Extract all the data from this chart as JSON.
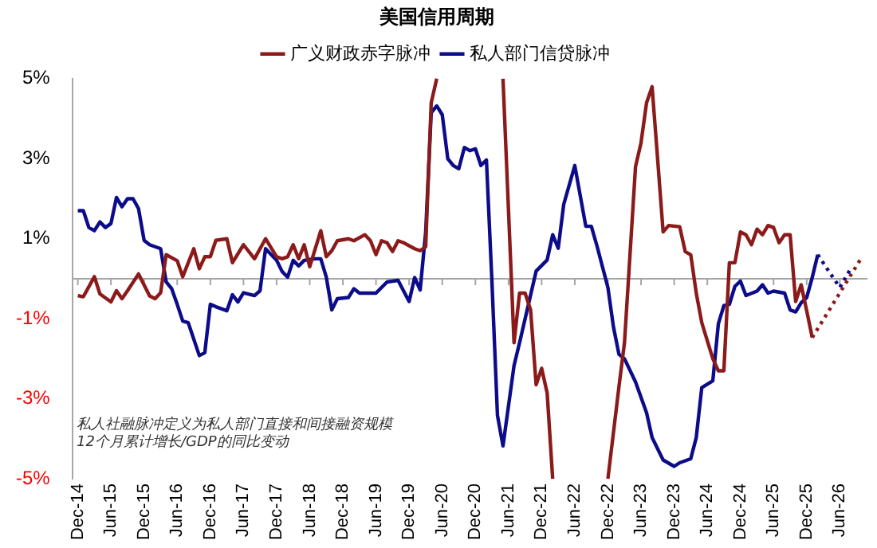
{
  "chart_data": {
    "type": "line",
    "title": "美国信用周期",
    "legend": "top",
    "marker": "none",
    "ylim": [
      -5,
      5
    ],
    "yticks": [
      {
        "value": 5,
        "label": "5%"
      },
      {
        "value": 3,
        "label": "3%"
      },
      {
        "value": 1,
        "label": "1%"
      },
      {
        "value": -1,
        "label": "-1%"
      },
      {
        "value": -3,
        "label": "-3%"
      },
      {
        "value": -5,
        "label": "-5%"
      }
    ],
    "xlim": [
      "2014-11",
      "2026-11"
    ],
    "xticks": [
      {
        "value": "2014-12",
        "label": "Dec-14"
      },
      {
        "value": "2015-06",
        "label": "Jun-15"
      },
      {
        "value": "2015-12",
        "label": "Dec-15"
      },
      {
        "value": "2016-06",
        "label": "Jun-16"
      },
      {
        "value": "2016-12",
        "label": "Dec-16"
      },
      {
        "value": "2017-06",
        "label": "Jun-17"
      },
      {
        "value": "2017-12",
        "label": "Dec-17"
      },
      {
        "value": "2018-06",
        "label": "Jun-18"
      },
      {
        "value": "2018-12",
        "label": "Dec-18"
      },
      {
        "value": "2019-06",
        "label": "Jun-19"
      },
      {
        "value": "2019-12",
        "label": "Dec-19"
      },
      {
        "value": "2020-06",
        "label": "Jun-20"
      },
      {
        "value": "2020-12",
        "label": "Dec-20"
      },
      {
        "value": "2021-06",
        "label": "Jun-21"
      },
      {
        "value": "2021-12",
        "label": "Dec-21"
      },
      {
        "value": "2022-06",
        "label": "Jun-22"
      },
      {
        "value": "2022-12",
        "label": "Dec-22"
      },
      {
        "value": "2023-06",
        "label": "Jun-23"
      },
      {
        "value": "2023-12",
        "label": "Dec-23"
      },
      {
        "value": "2024-06",
        "label": "Jun-24"
      },
      {
        "value": "2024-12",
        "label": "Dec-24"
      },
      {
        "value": "2025-06",
        "label": "Jun-25"
      },
      {
        "value": "2025-12",
        "label": "Dec-25"
      },
      {
        "value": "2026-06",
        "label": "Jun-26"
      }
    ],
    "grid": false,
    "ref_lines": [
      {
        "axis": "y",
        "value": 0,
        "color": "#a6a6a6"
      }
    ],
    "annotations": [
      "私人社融脉冲定义为私人部门直接和间接融资规模\n12个月累计增长/GDP的同比变动"
    ],
    "series": [
      {
        "name": "广义财政赤字脉冲",
        "color": "#8b1a1a",
        "line_style": "solid",
        "x": [
          "2014-12",
          "2015-01",
          "2015-03",
          "2015-04",
          "2015-06",
          "2015-07",
          "2015-08",
          "2015-09",
          "2015-11",
          "2016-01",
          "2016-02",
          "2016-03",
          "2016-04",
          "2016-06",
          "2016-07",
          "2016-09",
          "2016-10",
          "2016-11",
          "2016-12",
          "2017-01",
          "2017-03",
          "2017-04",
          "2017-06",
          "2017-08",
          "2017-10",
          "2017-12",
          "2018-01",
          "2018-02",
          "2018-03",
          "2018-04",
          "2018-05",
          "2018-06",
          "2018-08",
          "2018-09",
          "2018-10",
          "2018-11",
          "2019-01",
          "2019-02",
          "2019-04",
          "2019-05",
          "2019-06",
          "2019-07",
          "2019-08",
          "2019-09",
          "2019-10",
          "2019-11",
          "2020-01",
          "2020-02",
          "2020-03",
          "2020-04",
          "2020-05",
          "2020-11",
          "2021-05",
          "2021-07",
          "2021-08",
          "2021-09",
          "2021-10",
          "2021-11",
          "2021-12",
          "2022-01",
          "2022-02",
          "2022-07",
          "2022-12",
          "2023-02",
          "2023-03",
          "2023-05",
          "2023-06",
          "2023-07",
          "2023-08",
          "2023-09",
          "2023-10",
          "2023-11",
          "2024-01",
          "2024-02",
          "2024-03",
          "2024-04",
          "2024-05",
          "2024-07",
          "2024-08",
          "2024-09",
          "2024-10",
          "2024-11",
          "2024-12",
          "2025-01",
          "2025-02",
          "2025-03",
          "2025-04",
          "2025-05",
          "2025-06",
          "2025-07",
          "2025-08",
          "2025-09",
          "2025-10",
          "2025-11",
          "2025-12",
          "2026-01"
        ],
        "values": [
          -0.42,
          -0.45,
          0.05,
          -0.38,
          -0.58,
          -0.3,
          -0.5,
          -0.3,
          0.12,
          -0.43,
          -0.5,
          -0.35,
          0.6,
          0.45,
          0.05,
          0.75,
          0.25,
          0.55,
          0.55,
          0.96,
          1.0,
          0.4,
          0.85,
          0.5,
          1.0,
          0.55,
          0.5,
          0.55,
          0.85,
          0.5,
          0.85,
          0.3,
          1.2,
          0.55,
          0.7,
          0.95,
          1.0,
          0.95,
          1.1,
          0.95,
          0.6,
          0.95,
          0.9,
          0.68,
          0.95,
          0.9,
          0.75,
          0.7,
          0.8,
          4.4,
          5.0,
          null,
          5.0,
          -1.6,
          -0.36,
          -0.36,
          -0.78,
          -2.65,
          -2.24,
          -2.86,
          -5.0,
          null,
          -5.0,
          -2.7,
          -1.6,
          2.8,
          3.4,
          4.4,
          4.8,
          3.0,
          1.17,
          1.33,
          1.3,
          0.68,
          0.6,
          -0.36,
          -1.1,
          -2.0,
          -2.3,
          -2.3,
          0.4,
          0.4,
          1.17,
          1.1,
          0.85,
          1.24,
          1.1,
          1.33,
          1.28,
          0.9,
          1.1,
          1.1,
          -0.57,
          -0.15,
          -0.8,
          -1.47
        ]
      },
      {
        "name": "私人部门信贷脉冲",
        "color": "#0c0c8a",
        "line_style": "solid",
        "x": [
          "2014-12",
          "2015-01",
          "2015-02",
          "2015-03",
          "2015-04",
          "2015-05",
          "2015-06",
          "2015-07",
          "2015-08",
          "2015-09",
          "2015-10",
          "2015-11",
          "2015-12",
          "2016-01",
          "2016-02",
          "2016-03",
          "2016-04",
          "2016-05",
          "2016-06",
          "2016-07",
          "2016-08",
          "2016-10",
          "2016-11",
          "2016-12",
          "2017-01",
          "2017-03",
          "2017-04",
          "2017-05",
          "2017-06",
          "2017-08",
          "2017-09",
          "2017-10",
          "2017-12",
          "2018-01",
          "2018-02",
          "2018-03",
          "2018-04",
          "2018-05",
          "2018-07",
          "2018-08",
          "2018-09",
          "2018-10",
          "2018-11",
          "2019-01",
          "2019-02",
          "2019-03",
          "2019-05",
          "2019-06",
          "2019-08",
          "2019-10",
          "2019-12",
          "2020-01",
          "2020-02",
          "2020-03",
          "2020-04",
          "2020-05",
          "2020-06",
          "2020-07",
          "2020-08",
          "2020-09",
          "2020-10",
          "2020-11",
          "2020-12",
          "2021-01",
          "2021-02",
          "2021-03",
          "2021-04",
          "2021-05",
          "2021-07",
          "2021-08",
          "2021-11",
          "2022-01",
          "2022-02",
          "2022-03",
          "2022-04",
          "2022-06",
          "2022-08",
          "2022-09",
          "2022-10",
          "2022-12",
          "2023-01",
          "2023-02",
          "2023-03",
          "2023-05",
          "2023-07",
          "2023-08",
          "2023-10",
          "2023-12",
          "2024-01",
          "2024-03",
          "2024-04",
          "2024-05",
          "2024-07",
          "2024-08",
          "2024-09",
          "2024-10",
          "2024-11",
          "2024-12",
          "2025-01",
          "2025-03",
          "2025-04",
          "2025-05",
          "2025-06",
          "2025-08",
          "2025-09",
          "2025-10",
          "2025-11",
          "2025-12",
          "2026-01",
          "2026-02"
        ],
        "values": [
          1.7,
          1.7,
          1.28,
          1.2,
          1.42,
          1.28,
          1.38,
          2.03,
          1.8,
          2.0,
          2.0,
          1.75,
          0.96,
          0.85,
          0.8,
          0.75,
          -0.08,
          -0.25,
          -0.64,
          -1.06,
          -1.1,
          -1.92,
          -1.85,
          -0.64,
          -0.7,
          -0.8,
          -0.4,
          -0.58,
          -0.35,
          -0.42,
          -0.3,
          0.75,
          0.46,
          0.18,
          0.04,
          0.46,
          0.32,
          0.46,
          0.5,
          0.5,
          0.04,
          -0.78,
          -0.5,
          -0.47,
          -0.25,
          -0.36,
          -0.36,
          -0.36,
          -0.08,
          -0.04,
          -0.57,
          0.03,
          -0.28,
          1.17,
          4.15,
          4.32,
          4.1,
          3.0,
          2.83,
          2.75,
          3.28,
          3.2,
          3.25,
          2.83,
          2.97,
          -0.08,
          -3.42,
          -4.18,
          -2.17,
          -1.6,
          0.19,
          0.47,
          1.1,
          0.76,
          1.86,
          2.83,
          1.31,
          1.31,
          0.83,
          -0.22,
          -1.2,
          -1.89,
          -2.0,
          -2.58,
          -3.35,
          -3.97,
          -4.53,
          -4.69,
          -4.6,
          -4.5,
          -3.97,
          -2.72,
          -2.55,
          -1.13,
          -0.67,
          -0.64,
          -0.19,
          -0.06,
          -0.42,
          -0.31,
          -0.15,
          -0.36,
          -0.31,
          -0.36,
          -0.78,
          -0.83,
          -0.6,
          -0.47,
          0.03,
          0.6
        ]
      },
      {
        "color": "#8b1a1a",
        "line_style": "dotted",
        "x": [
          "2026-01",
          "2026-10"
        ],
        "values": [
          -1.47,
          0.54
        ]
      },
      {
        "color": "#0c0c8a",
        "line_style": "dotted",
        "x": [
          "2026-02",
          "2026-06",
          "2026-08"
        ],
        "values": [
          0.6,
          -0.22,
          0.26
        ]
      }
    ]
  }
}
